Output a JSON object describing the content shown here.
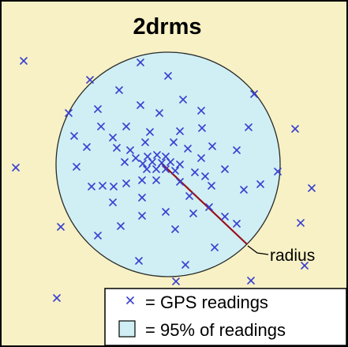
{
  "title": "2drms",
  "radius_label": "radius",
  "legend": {
    "readings_label": "= GPS readings",
    "area_label": "= 95% of readings"
  },
  "colors": {
    "background": "#f7f1c5",
    "circle_fill": "#cfeff4",
    "marker": "#3a3fd0",
    "radius_line": "#9b0d18",
    "border": "#000000"
  },
  "icons": {
    "marker": "x-mark-icon",
    "swatch": "square-swatch-icon"
  },
  "readings_description": "GPS position fixes scattered around a central point"
}
